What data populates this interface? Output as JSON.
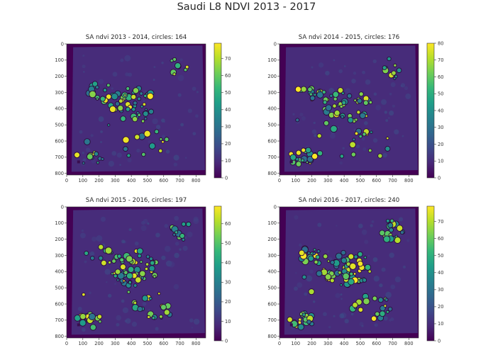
{
  "figure": {
    "title": "Saudi L8 NDVI 2013 - 2017",
    "colormap": "viridis",
    "colormap_stops": [
      "#440154",
      "#482878",
      "#3e4989",
      "#31688e",
      "#26828e",
      "#1f9e89",
      "#35b779",
      "#6ece58",
      "#b5de2b",
      "#fde725"
    ],
    "background_color": "#472c7a",
    "outside_color": "#440154"
  },
  "chart_data": [
    {
      "type": "heatmap",
      "title": "SA ndvi 2013 - 2014, circles: 164",
      "circles": 164,
      "x_ticks": [
        0,
        100,
        200,
        300,
        400,
        500,
        600,
        700,
        800
      ],
      "y_ticks": [
        0,
        100,
        200,
        300,
        400,
        500,
        600,
        700,
        800
      ],
      "xlim": [
        0,
        860
      ],
      "ylim": [
        810,
        0
      ],
      "colorbar": {
        "ticks": [
          0,
          10,
          20,
          30,
          40,
          50,
          60,
          70
        ],
        "vmin": 0,
        "vmax": 79
      }
    },
    {
      "type": "heatmap",
      "title": "SA ndvi 2014 - 2015, circles: 176",
      "circles": 176,
      "x_ticks": [
        0,
        100,
        200,
        300,
        400,
        500,
        600,
        700,
        800
      ],
      "y_ticks": [
        0,
        100,
        200,
        300,
        400,
        500,
        600,
        700,
        800
      ],
      "xlim": [
        0,
        860
      ],
      "ylim": [
        810,
        0
      ],
      "colorbar": {
        "ticks": [
          0,
          10,
          20,
          30,
          40,
          50,
          60,
          70,
          80
        ],
        "vmin": 0,
        "vmax": 80
      }
    },
    {
      "type": "heatmap",
      "title": "SA ndvi 2015 - 2016, circles: 197",
      "circles": 197,
      "x_ticks": [
        0,
        100,
        200,
        300,
        400,
        500,
        600,
        700,
        800
      ],
      "y_ticks": [
        0,
        100,
        200,
        300,
        400,
        500,
        600,
        700,
        800
      ],
      "xlim": [
        0,
        860
      ],
      "ylim": [
        810,
        0
      ],
      "colorbar": {
        "ticks": [
          0,
          10,
          20,
          30,
          40,
          50,
          60
        ],
        "vmin": 0,
        "vmax": 69
      }
    },
    {
      "type": "heatmap",
      "title": "SA ndvi 2016 - 2017, circles: 240",
      "circles": 240,
      "x_ticks": [
        0,
        100,
        200,
        300,
        400,
        500,
        600,
        700,
        800
      ],
      "y_ticks": [
        0,
        100,
        200,
        300,
        400,
        500,
        600,
        700,
        800
      ],
      "xlim": [
        0,
        860
      ],
      "ylim": [
        810,
        0
      ],
      "colorbar": {
        "ticks": [
          0,
          10,
          20,
          30,
          40,
          50,
          60,
          70
        ],
        "vmin": 0,
        "vmax": 79
      }
    }
  ]
}
